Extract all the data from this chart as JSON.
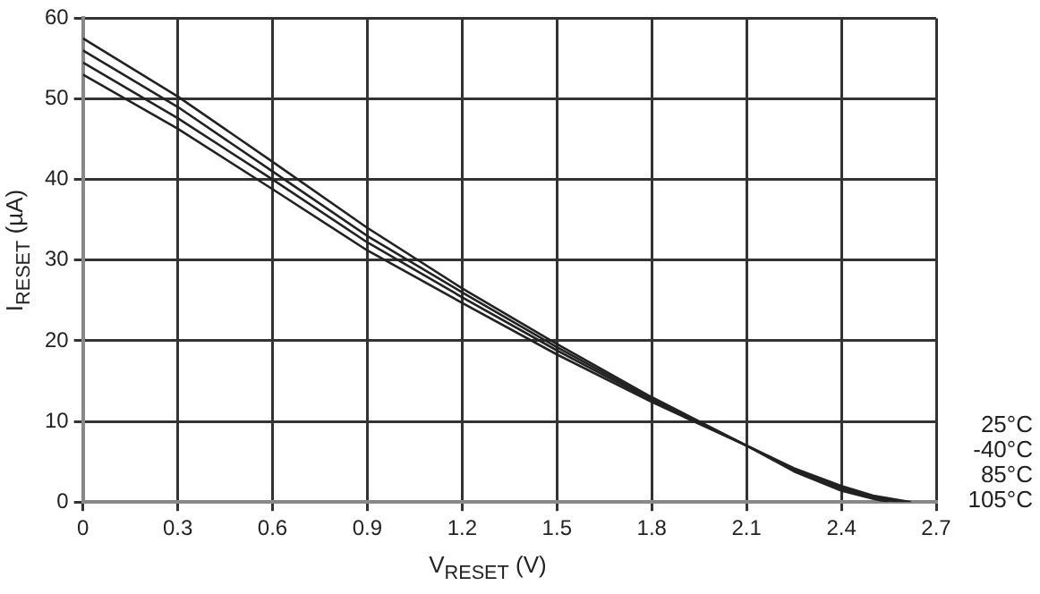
{
  "chart_data": {
    "type": "line",
    "xlabel": "V$_{RESET}$ (V)",
    "ylabel": "I$_{RESET}$ (µA)",
    "xlim": [
      0,
      2.7
    ],
    "xticks": [
      0,
      0.3,
      0.6,
      0.9,
      1.2,
      1.5,
      1.8,
      2.1,
      2.4,
      2.7
    ],
    "ylim": [
      0,
      60
    ],
    "yticks": [
      0,
      10,
      20,
      30,
      40,
      50,
      60
    ],
    "grid": true,
    "legend": false,
    "marker": "none",
    "line_style": "solid",
    "series": [
      {
        "name": "25°C",
        "color": "#222222",
        "x": [
          0,
          0.3,
          0.6,
          0.9,
          1.2,
          1.5,
          1.8,
          2.1,
          2.25,
          2.4,
          2.5,
          2.62
        ],
        "values": [
          57.5,
          50.3,
          42.2,
          34,
          26.5,
          19.6,
          13,
          7,
          4.2,
          2,
          0.8,
          0
        ]
      },
      {
        "name": "-40°C",
        "color": "#222222",
        "x": [
          0,
          0.3,
          0.6,
          0.9,
          1.2,
          1.5,
          1.8,
          2.1,
          2.25,
          2.4,
          2.5,
          2.6
        ],
        "values": [
          56,
          49,
          41,
          33,
          26,
          19.2,
          12.8,
          7,
          4.1,
          1.8,
          0.7,
          0
        ]
      },
      {
        "name": "85°C",
        "color": "#222222",
        "x": [
          0,
          0.3,
          0.6,
          0.9,
          1.2,
          1.5,
          1.8,
          2.1,
          2.25,
          2.4,
          2.5,
          2.58
        ],
        "values": [
          54.5,
          47.6,
          40,
          32.2,
          25.4,
          18.8,
          12.6,
          7,
          4,
          1.6,
          0.5,
          0
        ]
      },
      {
        "name": "105°C",
        "color": "#222222",
        "x": [
          0,
          0.3,
          0.6,
          0.9,
          1.2,
          1.5,
          1.8,
          2.1,
          2.25,
          2.4,
          2.5,
          2.55
        ],
        "values": [
          53,
          46.3,
          38.8,
          31.2,
          24.7,
          18.3,
          12.4,
          7,
          3.8,
          1.4,
          0.4,
          0
        ]
      }
    ]
  }
}
